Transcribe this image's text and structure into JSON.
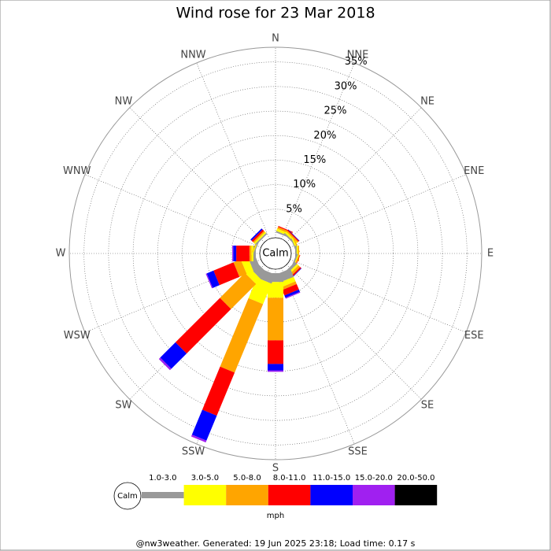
{
  "chart_data": {
    "type": "windrose",
    "title": "Wind rose for 23 Mar 2018",
    "calm_label": "Calm",
    "unit_label": "mph",
    "footer": "@nw3weather. Generated: 19 Jun 2025 23:18; Load time: 0.17 s",
    "categories": [
      "N",
      "NNE",
      "NE",
      "ENE",
      "E",
      "ESE",
      "SE",
      "SSE",
      "S",
      "SSW",
      "SW",
      "WSW",
      "W",
      "WNW",
      "NW",
      "NNW"
    ],
    "rlim": [
      0,
      38
    ],
    "rticks": [
      {
        "value": 5,
        "label": "5%"
      },
      {
        "value": 10,
        "label": "10%"
      },
      {
        "value": 15,
        "label": "15%"
      },
      {
        "value": 20,
        "label": "20%"
      },
      {
        "value": 25,
        "label": "25%"
      },
      {
        "value": 30,
        "label": "30%"
      },
      {
        "value": 35,
        "label": "35%"
      }
    ],
    "series": [
      {
        "name": "1.0-3.0",
        "color": "#999999",
        "values": [
          0,
          0.3,
          0.3,
          0.2,
          0.3,
          0.3,
          0.6,
          1.8,
          1.8,
          2,
          1.8,
          1.5,
          0.5,
          0.2,
          0.3,
          0
        ]
      },
      {
        "name": "3.0-5.0",
        "color": "#ffff00",
        "values": [
          0,
          0.5,
          0.4,
          0.3,
          0.3,
          0.2,
          0.4,
          1,
          3.2,
          4.5,
          1.4,
          1.5,
          0.4,
          0.2,
          0.3,
          0
        ]
      },
      {
        "name": "5.0-8.0",
        "color": "#ffa500",
        "values": [
          0,
          0.4,
          0.3,
          0.2,
          0.2,
          0.2,
          0.5,
          0.6,
          8.7,
          15.1,
          7.2,
          1.6,
          0.4,
          0.1,
          0.3,
          0
        ]
      },
      {
        "name": "8.0-11.0",
        "color": "#ff0000",
        "values": [
          0,
          0.2,
          0.2,
          0,
          0,
          0.1,
          0.3,
          1.2,
          4.8,
          9.5,
          12.8,
          4.4,
          2.7,
          0,
          0.4,
          0
        ]
      },
      {
        "name": "11.0-15.0",
        "color": "#0000ff",
        "values": [
          0,
          0,
          0.1,
          0,
          0,
          0,
          0.1,
          0.5,
          1.3,
          5.5,
          4.4,
          1.5,
          0.6,
          0,
          0.3,
          0
        ]
      },
      {
        "name": "15.0-20.0",
        "color": "#a020f0",
        "values": [
          0,
          0,
          0,
          0,
          0,
          0,
          0,
          0.2,
          0.3,
          0.4,
          0.4,
          0.2,
          0.2,
          0,
          0,
          0
        ]
      },
      {
        "name": "20.0-50.0",
        "color": "#000000",
        "values": [
          0,
          0,
          0,
          0,
          0,
          0,
          0,
          0,
          0,
          0,
          0,
          0,
          0,
          0,
          0,
          0
        ]
      }
    ]
  }
}
